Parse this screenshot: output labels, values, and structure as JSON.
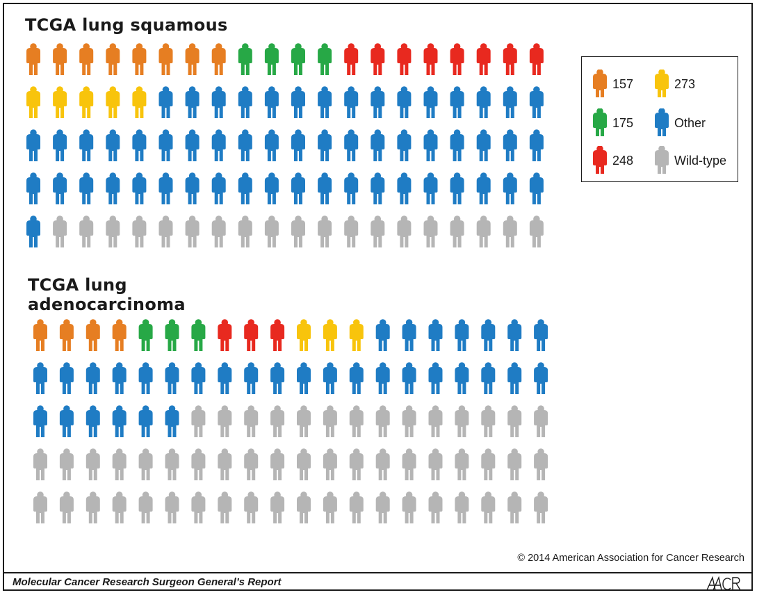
{
  "chart_data": {
    "type": "pictogram",
    "categories": [
      "157",
      "175",
      "248",
      "273",
      "Other",
      "Wild-type"
    ],
    "colors": {
      "157": "#e67e22",
      "175": "#27a846",
      "248": "#e8291f",
      "273": "#f8c40c",
      "Other": "#1f7cc4",
      "Wild-type": "#b5b5b5"
    },
    "panels": [
      {
        "title": "TCGA lung squamous",
        "rows": 5,
        "cols": 20,
        "counts": {
          "157": 8,
          "175": 4,
          "248": 8,
          "273": 5,
          "Other": 56,
          "Wild-type": 19
        }
      },
      {
        "title": "TCGA lung adenocarcinoma",
        "rows": 5,
        "cols": 20,
        "counts": {
          "157": 4,
          "175": 3,
          "248": 3,
          "273": 3,
          "Other": 33,
          "Wild-type": 54
        }
      }
    ],
    "legend": {
      "position": "top-right",
      "items": [
        {
          "key": "157",
          "label": "157"
        },
        {
          "key": "273",
          "label": "273"
        },
        {
          "key": "175",
          "label": "175"
        },
        {
          "key": "Other",
          "label": "Other"
        },
        {
          "key": "248",
          "label": "248"
        },
        {
          "key": "Wild-type",
          "label": "Wild-type"
        }
      ]
    }
  },
  "footer": {
    "copyright": "© 2014 American Association for Cancer Research",
    "report_title": "Molecular Cancer Research Surgeon General’s Report",
    "logo_text": "AACR"
  }
}
